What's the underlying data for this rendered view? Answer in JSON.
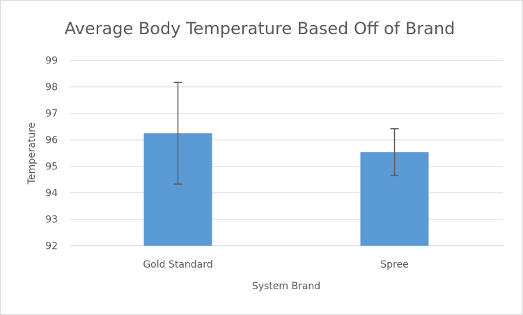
{
  "chart_data": {
    "type": "bar",
    "title": "Average Body Temperature Based Off of Brand",
    "xlabel": "System Brand",
    "ylabel": "Temperature",
    "categories": [
      "Gold Standard",
      "Spree"
    ],
    "values": [
      96.25,
      95.54
    ],
    "error_bars": [
      1.92,
      0.88
    ],
    "ylim": [
      92,
      99
    ],
    "yticks": [
      92,
      93,
      94,
      95,
      96,
      97,
      98,
      99
    ],
    "grid": true,
    "legend": "none",
    "bar_color": "#5b9bd5",
    "error_color": "#595959"
  }
}
